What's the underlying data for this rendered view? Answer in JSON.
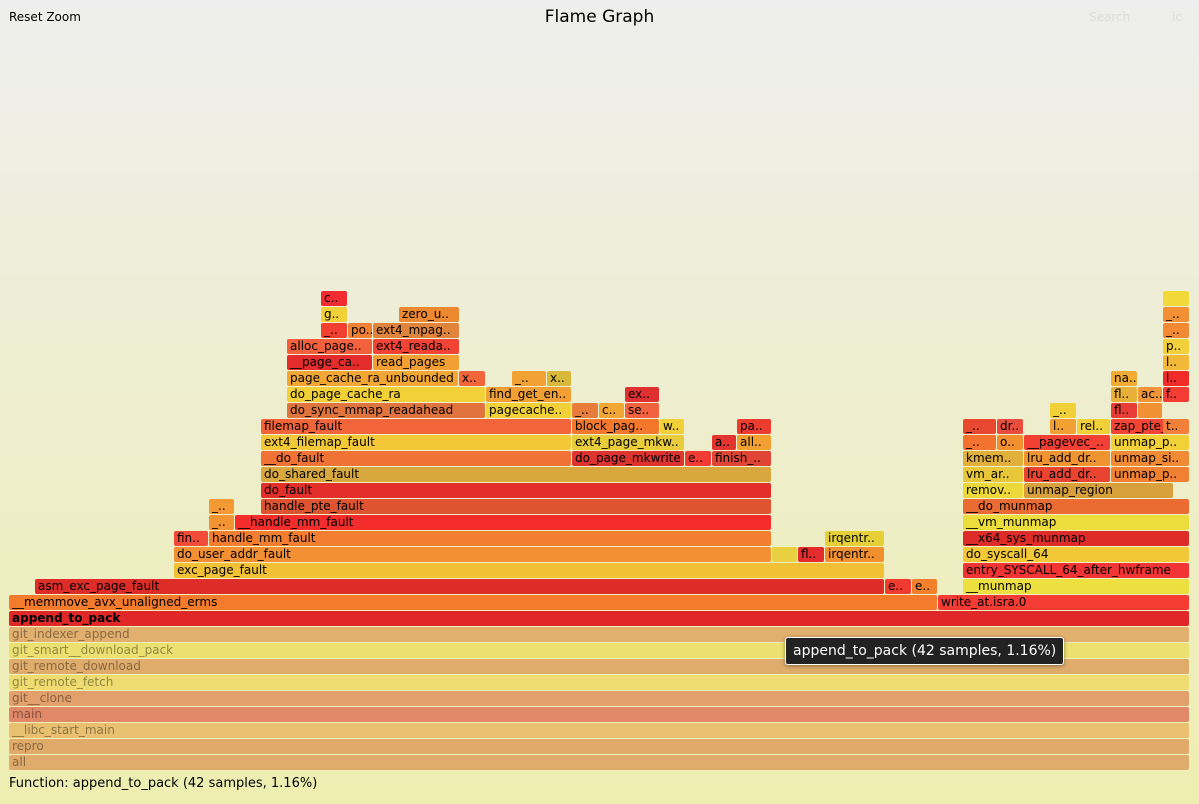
{
  "header": {
    "reset_zoom": "Reset Zoom",
    "title": "Flame Graph",
    "search": "Search",
    "ic": "ic"
  },
  "tooltip": "append_to_pack (42 samples, 1.16%)",
  "details": "Function: append_to_pack (42 samples, 1.16%)",
  "flames": [
    {
      "label": "all",
      "color": "#e0ac6c"
    },
    {
      "label": "repro",
      "color": "#e0aa6a"
    },
    {
      "label": "__libc_start_main",
      "color": "#e8c070"
    },
    {
      "label": "main",
      "color": "#e08868"
    },
    {
      "label": "git__clone",
      "color": "#e2a06c"
    },
    {
      "label": "git_remote_fetch",
      "color": "#eedc70"
    },
    {
      "label": "git_remote_download",
      "color": "#e0ac6c"
    },
    {
      "label": "git_smart__download_pack",
      "color": "#ece070"
    },
    {
      "label": "git_indexer_append",
      "color": "#e2b06e"
    },
    {
      "label": "append_to_pack",
      "color": "#e02828"
    },
    {
      "label": "__memmove_avx_unaligned_erms",
      "color": "#f47a2c"
    },
    {
      "label": "write_at.isra.0",
      "color": "#f43c34"
    },
    {
      "label": "asm_exc_page_fault",
      "color": "#de2c28"
    },
    {
      "label": "e..",
      "color": "#f03c30"
    },
    {
      "label": "e..",
      "color": "#f4802c"
    },
    {
      "label": "__munmap",
      "color": "#ece040"
    },
    {
      "label": "exc_page_fault",
      "color": "#f2c034"
    },
    {
      "label": "entry_SYSCALL_64_after_hwframe",
      "color": "#f23434"
    },
    {
      "label": "do_user_addr_fault",
      "color": "#f49034"
    },
    {
      "label": "",
      "color": "#e8d040"
    },
    {
      "label": "fl..",
      "color": "#e42c2c"
    },
    {
      "label": "irqentr..",
      "color": "#f29030"
    },
    {
      "label": "do_syscall_64",
      "color": "#f2c838"
    },
    {
      "label": "fin..",
      "color": "#f24c38"
    },
    {
      "label": "handle_mm_fault",
      "color": "#f47e30"
    },
    {
      "label": "irqentr..",
      "color": "#e6d038"
    },
    {
      "label": "__x64_sys_munmap",
      "color": "#de2c28"
    },
    {
      "label": "_..",
      "color": "#f29434"
    },
    {
      "label": "__handle_mm_fault",
      "color": "#f42c2c"
    },
    {
      "label": "__vm_munmap",
      "color": "#ecdc3c"
    },
    {
      "label": "_..",
      "color": "#f49a34"
    },
    {
      "label": "handle_pte_fault",
      "color": "#de5430"
    },
    {
      "label": "__do_munmap",
      "color": "#ea6c32"
    },
    {
      "label": "do_fault",
      "color": "#e42e2a"
    },
    {
      "label": "remov..",
      "color": "#ecd838"
    },
    {
      "label": "unmap_region",
      "color": "#d8a03a"
    },
    {
      "label": "do_shared_fault",
      "color": "#d8a83e"
    },
    {
      "label": "vm_ar..",
      "color": "#e8c838"
    },
    {
      "label": "lru_add_dr..",
      "color": "#e84430"
    },
    {
      "label": "unmap_p..",
      "color": "#f08032"
    },
    {
      "label": "__do_fault",
      "color": "#f07234"
    },
    {
      "label": "do_page_mkwrite",
      "color": "#de3430"
    },
    {
      "label": "e..",
      "color": "#f03c34"
    },
    {
      "label": "finish_..",
      "color": "#e04434"
    },
    {
      "label": "kmem..",
      "color": "#e0b03a"
    },
    {
      "label": "lru_add_dr..",
      "color": "#f09432"
    },
    {
      "label": "unmap_si..",
      "color": "#f08a34"
    },
    {
      "label": "ext4_filemap_fault",
      "color": "#f2c838"
    },
    {
      "label": "ext4_page_mkw..",
      "color": "#e8cc3c"
    },
    {
      "label": "a..",
      "color": "#e43430"
    },
    {
      "label": "all..",
      "color": "#f2a032"
    },
    {
      "label": "_..",
      "color": "#f2722e"
    },
    {
      "label": "o..",
      "color": "#f29030"
    },
    {
      "label": "__pagevec_..",
      "color": "#f24034"
    },
    {
      "label": "unmap_p..",
      "color": "#f2d038"
    },
    {
      "label": "filemap_fault",
      "color": "#f2643a"
    },
    {
      "label": "block_pag..",
      "color": "#f4782c"
    },
    {
      "label": "w..",
      "color": "#f2d038"
    },
    {
      "label": "pa..",
      "color": "#ec3c30"
    },
    {
      "label": "_..",
      "color": "#e84830"
    },
    {
      "label": "dr..",
      "color": "#e84c3c"
    },
    {
      "label": "l..",
      "color": "#f2a032"
    },
    {
      "label": "rel..",
      "color": "#f2d03a"
    },
    {
      "label": "zap_pte_..",
      "color": "#f44434"
    },
    {
      "label": "t..",
      "color": "#f2803a"
    },
    {
      "label": "do_sync_mmap_readahead",
      "color": "#e0743c"
    },
    {
      "label": "pagecache..",
      "color": "#f2d038"
    },
    {
      "label": "_..",
      "color": "#e87c3a"
    },
    {
      "label": "c..",
      "color": "#f2a634"
    },
    {
      "label": "se..",
      "color": "#f2623e"
    },
    {
      "label": "_..",
      "color": "#f2d038"
    },
    {
      "label": "fl..",
      "color": "#e83c38"
    },
    {
      "label": "",
      "color": "#f29034"
    },
    {
      "label": "do_page_cache_ra",
      "color": "#f2d038"
    },
    {
      "label": "find_get_en..",
      "color": "#f2a034"
    },
    {
      "label": "ex..",
      "color": "#e03032"
    },
    {
      "label": "fl..",
      "color": "#e8b038"
    },
    {
      "label": "ac..",
      "color": "#f29438"
    },
    {
      "label": "f..",
      "color": "#f23c34"
    },
    {
      "label": "page_cache_ra_unbounded",
      "color": "#f2a634"
    },
    {
      "label": "x..",
      "color": "#f2643a"
    },
    {
      "label": "_..",
      "color": "#f2a234"
    },
    {
      "label": "x..",
      "color": "#d8b838"
    },
    {
      "label": "na..",
      "color": "#f2ac34"
    },
    {
      "label": "l..",
      "color": "#f02c28"
    },
    {
      "label": "__page_ca..",
      "color": "#e42c2c"
    },
    {
      "label": "read_pages",
      "color": "#f2a034"
    },
    {
      "label": "l..",
      "color": "#f2b838"
    },
    {
      "label": "alloc_page..",
      "color": "#f2603e"
    },
    {
      "label": "ext4_reada..",
      "color": "#f24434"
    },
    {
      "label": "p..",
      "color": "#f2d03a"
    },
    {
      "label": "_..",
      "color": "#f24030"
    },
    {
      "label": "po..",
      "color": "#f28034"
    },
    {
      "label": "ext4_mpag..",
      "color": "#e0843c"
    },
    {
      "label": "_..",
      "color": "#f28a34"
    },
    {
      "label": "g..",
      "color": "#f2d038"
    },
    {
      "label": "zero_u..",
      "color": "#ec8830"
    },
    {
      "label": "_..",
      "color": "#f29034"
    },
    {
      "label": "c..",
      "color": "#f02c30"
    },
    {
      "label": "",
      "color": "#f2d838"
    }
  ]
}
